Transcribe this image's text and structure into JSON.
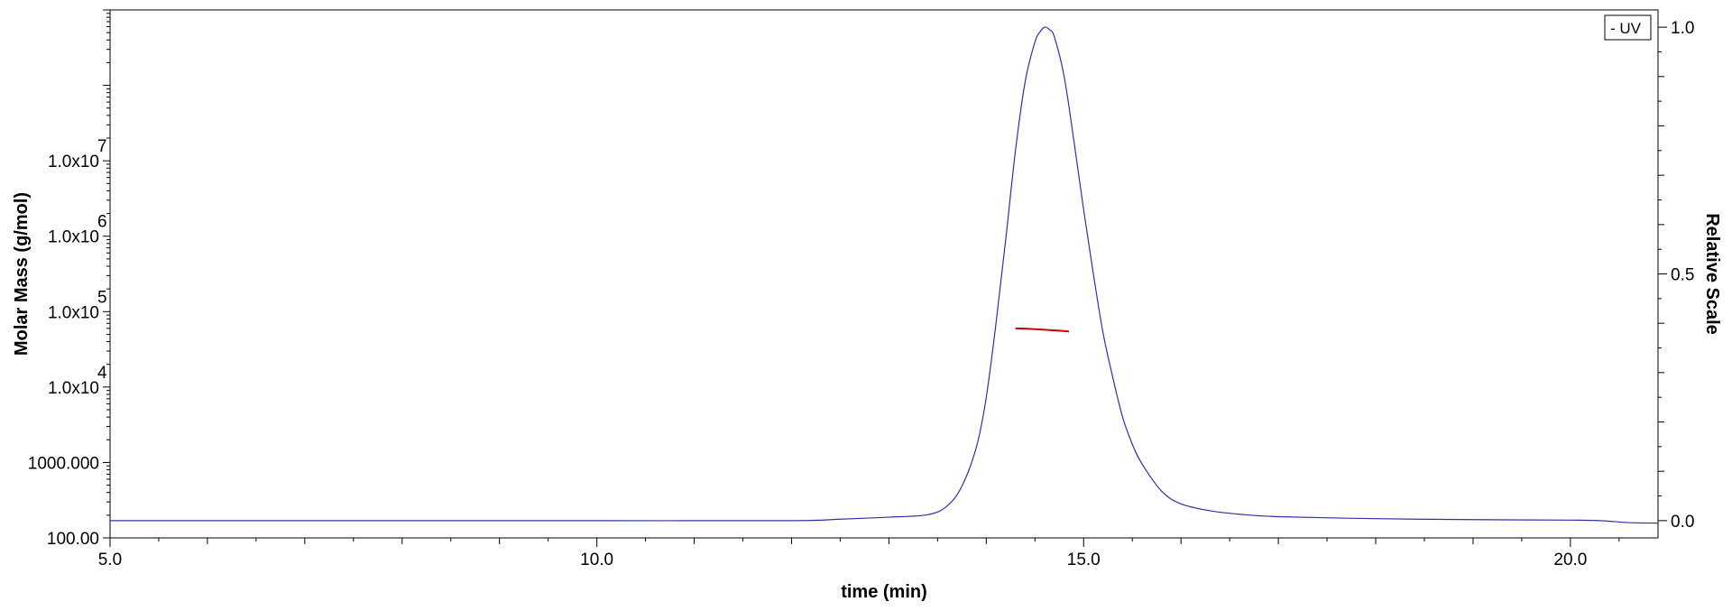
{
  "chart_data": {
    "type": "line",
    "xlabel": "time (min)",
    "ylabel_left": "Molar Mass (g/mol)",
    "ylabel_right": "Relative Scale",
    "xlim": [
      5.0,
      20.9
    ],
    "xticks_major": [
      5.0,
      10.0,
      15.0,
      20.0
    ],
    "x_tick_labels": [
      "5.0",
      "10.0",
      "15.0",
      "20.0"
    ],
    "left_axis": {
      "scale": "log",
      "ylim": [
        100,
        1000000000
      ],
      "tick_labels": [
        {
          "value": 100,
          "base": "100.00",
          "exp": ""
        },
        {
          "value": 1000,
          "base": "1000.000",
          "exp": ""
        },
        {
          "value": 10000,
          "base": "1.0x10",
          "exp": "4"
        },
        {
          "value": 100000,
          "base": "1.0x10",
          "exp": "5"
        },
        {
          "value": 1000000,
          "base": "1.0x10",
          "exp": "6"
        },
        {
          "value": 10000000,
          "base": "1.0x10",
          "exp": "7"
        }
      ]
    },
    "right_axis": {
      "scale": "linear",
      "ylim": [
        -0.035,
        1.035
      ],
      "ticks": [
        0.0,
        0.5,
        1.0
      ],
      "tick_labels": [
        "0.0",
        "0.5",
        "1.0"
      ]
    },
    "legend": {
      "position": "top-right",
      "entries": [
        "UV"
      ]
    },
    "series": [
      {
        "name": "UV",
        "axis": "right",
        "color": "#3030a8",
        "x": [
          5.0,
          6.0,
          8.0,
          10.0,
          12.0,
          12.5,
          13.0,
          13.4,
          13.6,
          13.75,
          13.9,
          14.0,
          14.1,
          14.2,
          14.3,
          14.4,
          14.5,
          14.55,
          14.6,
          14.65,
          14.7,
          14.8,
          14.9,
          15.0,
          15.1,
          15.2,
          15.3,
          15.4,
          15.5,
          15.6,
          15.8,
          16.0,
          16.3,
          16.6,
          17.0,
          18.0,
          19.0,
          20.0,
          20.3,
          20.6,
          20.9
        ],
        "y": [
          0.0,
          0.0,
          0.0,
          0.0,
          0.0,
          0.003,
          0.007,
          0.012,
          0.03,
          0.07,
          0.15,
          0.25,
          0.4,
          0.57,
          0.75,
          0.89,
          0.97,
          0.99,
          1.0,
          0.995,
          0.98,
          0.9,
          0.77,
          0.63,
          0.5,
          0.38,
          0.29,
          0.21,
          0.155,
          0.115,
          0.06,
          0.034,
          0.02,
          0.013,
          0.008,
          0.004,
          0.002,
          0.001,
          0.0,
          -0.004,
          -0.005
        ]
      },
      {
        "name": "",
        "axis": "left",
        "color": "#cc0000",
        "x": [
          14.3,
          14.45,
          14.6,
          14.75,
          14.85
        ],
        "y": [
          60000,
          59000,
          57500,
          56000,
          54500
        ]
      }
    ]
  }
}
